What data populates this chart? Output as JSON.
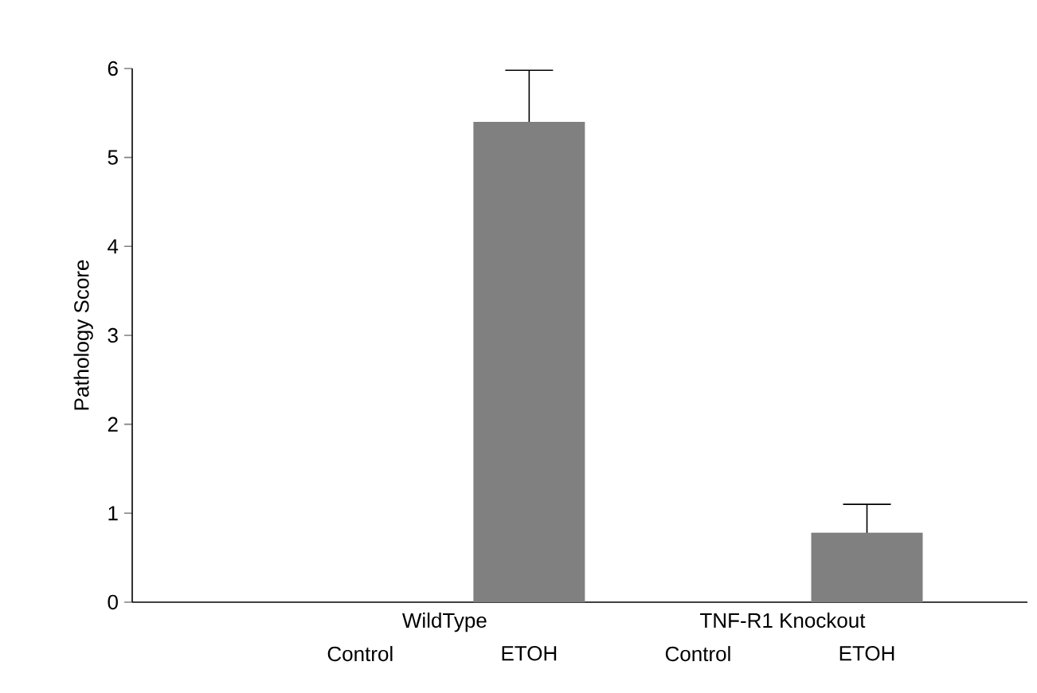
{
  "chart_data": {
    "type": "bar",
    "ylabel": "Pathology Score",
    "categories": [
      "Control",
      "ETOH",
      "Control",
      "ETOH"
    ],
    "values": [
      0,
      5.4,
      0,
      0.78
    ],
    "errors": [
      null,
      0.58,
      null,
      0.32
    ],
    "color": "#808080",
    "ylim": [
      0,
      6
    ],
    "yticks": [
      0,
      1,
      2,
      3,
      4,
      5,
      6
    ],
    "annotations": [
      "WildType",
      "TNF-R1 Knockout"
    ],
    "grid": false
  }
}
